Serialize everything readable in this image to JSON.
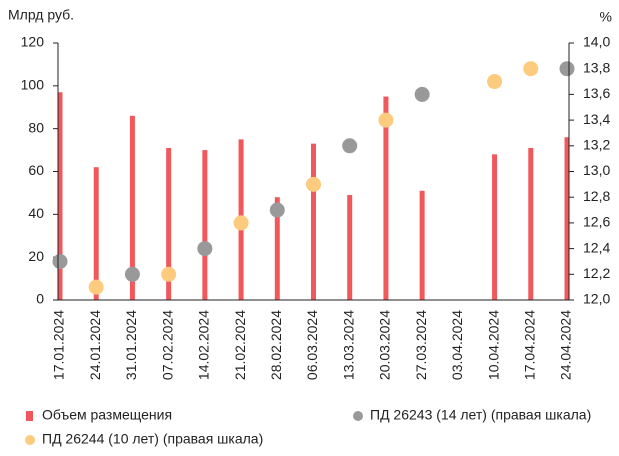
{
  "chart_data": {
    "type": "bar",
    "ylabel": "Млрд руб.",
    "y2label": "%",
    "categories": [
      "17.01.2024",
      "24.01.2024",
      "31.01.2024",
      "07.02.2024",
      "14.02.2024",
      "21.02.2024",
      "28.02.2024",
      "06.03.2024",
      "13.03.2024",
      "20.03.2024",
      "27.03.2024",
      "03.04.2024",
      "10.04.2024",
      "17.04.2024",
      "24.04.2024"
    ],
    "series": [
      {
        "name": "Объем размещения",
        "type": "bar",
        "color": "#f0585c",
        "values": [
          97,
          62,
          86,
          71,
          70,
          75,
          48,
          73,
          49,
          95,
          51,
          null,
          68,
          71,
          76
        ]
      },
      {
        "name": "ПД 26243 (14 лет) (правая шкала)",
        "type": "scatter",
        "axis": "y2",
        "color": "#999999",
        "values": [
          12.3,
          null,
          12.2,
          null,
          12.4,
          null,
          12.7,
          null,
          13.2,
          null,
          13.6,
          null,
          null,
          null,
          13.8
        ]
      },
      {
        "name": "ПД 26244 (10 лет) (правая шкала)",
        "type": "scatter",
        "axis": "y2",
        "color": "#fccb7e",
        "values": [
          null,
          12.1,
          null,
          12.2,
          null,
          12.6,
          null,
          12.9,
          null,
          13.4,
          null,
          null,
          13.7,
          13.8,
          null
        ]
      }
    ],
    "ylim": [
      0,
      120
    ],
    "yticks": [
      0,
      20,
      40,
      60,
      80,
      100,
      120
    ],
    "y2lim": [
      12.0,
      14.0
    ],
    "y2ticks": [
      {
        "value": 12.0,
        "label": "12,0"
      },
      {
        "value": 12.2,
        "label": "12,2"
      },
      {
        "value": 12.4,
        "label": "12,4"
      },
      {
        "value": 12.6,
        "label": "12,6"
      },
      {
        "value": 12.8,
        "label": "12,8"
      },
      {
        "value": 13.0,
        "label": "13,0"
      },
      {
        "value": 13.2,
        "label": "13,2"
      },
      {
        "value": 13.4,
        "label": "13,4"
      },
      {
        "value": 13.6,
        "label": "13,6"
      },
      {
        "value": 13.8,
        "label": "13,8"
      },
      {
        "value": 14.0,
        "label": "14,0"
      }
    ]
  }
}
